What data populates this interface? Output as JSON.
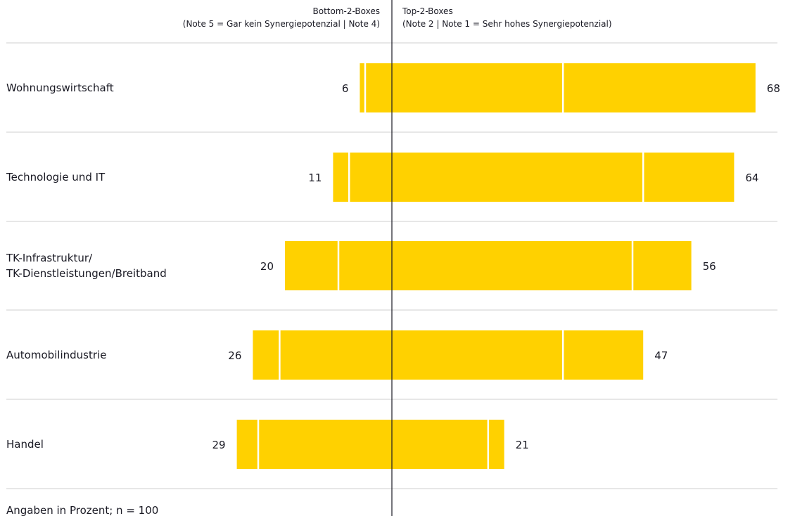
{
  "chart_data": {
    "type": "bar",
    "orientation": "horizontal-diverging",
    "header_left": {
      "line1": "Bottom-2-Boxes",
      "line2": "(Note 5 = Gar kein Synergiepotenzial | Note 4)"
    },
    "header_right": {
      "line1": "Top-2-Boxes",
      "line2": "(Note 2 | Note 1 = Sehr hohes Synergiepotenzial)"
    },
    "categories": [
      [
        "Wohnungswirtschaft"
      ],
      [
        "Technologie und IT"
      ],
      [
        "TK-Infrastruktur/",
        "TK-Dienstleistungen/Breitband"
      ],
      [
        "Automobilindustrie"
      ],
      [
        "Handel"
      ]
    ],
    "bottom2": {
      "totals": [
        6,
        11,
        20,
        26,
        29
      ],
      "note5": [
        1,
        3,
        10,
        5,
        4
      ],
      "note4": [
        5,
        8,
        10,
        21,
        25
      ]
    },
    "top2": {
      "totals": [
        68,
        64,
        56,
        47,
        21
      ],
      "note2": [
        32,
        47,
        45,
        32,
        18
      ],
      "note1": [
        36,
        17,
        11,
        15,
        3
      ]
    },
    "colors": {
      "bar": "#FFD100",
      "divider": "#ffffff",
      "gridline": "#cfcfcf",
      "axis": "#1a1a24",
      "text": "#1a1a24"
    },
    "footnote": "Angaben in Prozent; n = 100"
  }
}
